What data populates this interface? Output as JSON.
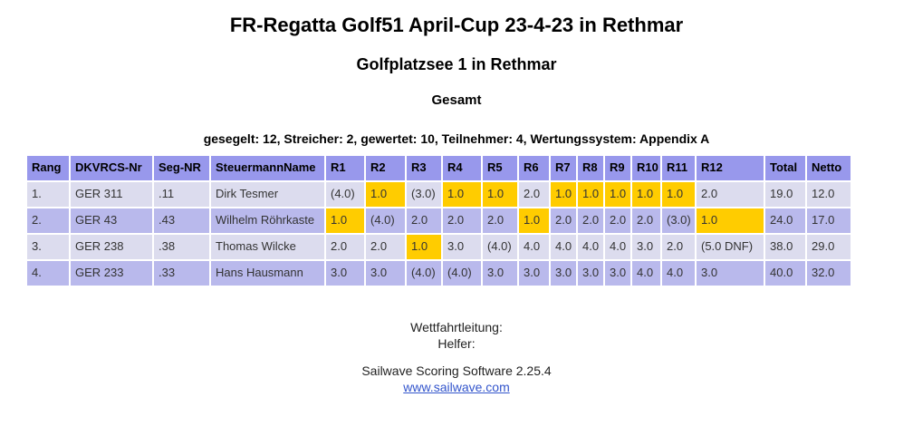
{
  "header": {
    "title": "FR-Regatta Golf51 April-Cup 23-4-23 in Rethmar",
    "subtitle": "Golfplatzsee 1 in Rethmar",
    "section": "Gesamt",
    "summary": "gesegelt: 12, Streicher: 2, gewertet: 10, Teilnehmer: 4, Wertungssystem: Appendix A"
  },
  "table": {
    "columns": [
      "Rang",
      "DKVRCS-Nr",
      "Seg-NR",
      "SteuermannName",
      "R1",
      "R2",
      "R3",
      "R4",
      "R5",
      "R6",
      "R7",
      "R8",
      "R9",
      "R10",
      "R11",
      "R12",
      "Total",
      "Netto"
    ],
    "rows": [
      {
        "rank": "1.",
        "dkvrcs_nr": "GER 311",
        "seg_nr": ".11",
        "steuermann": "Dirk Tesmer",
        "races": [
          {
            "v": "(4.0)"
          },
          {
            "v": "1.0",
            "hl": true
          },
          {
            "v": "(3.0)"
          },
          {
            "v": "1.0",
            "hl": true
          },
          {
            "v": "1.0",
            "hl": true
          },
          {
            "v": "2.0"
          },
          {
            "v": "1.0",
            "hl": true
          },
          {
            "v": "1.0",
            "hl": true
          },
          {
            "v": "1.0",
            "hl": true
          },
          {
            "v": "1.0",
            "hl": true
          },
          {
            "v": "1.0",
            "hl": true
          },
          {
            "v": "2.0"
          }
        ],
        "total": "19.0",
        "netto": "12.0"
      },
      {
        "rank": "2.",
        "dkvrcs_nr": "GER 43",
        "seg_nr": ".43",
        "steuermann": "Wilhelm Röhrkaste",
        "races": [
          {
            "v": "1.0",
            "hl": true
          },
          {
            "v": "(4.0)"
          },
          {
            "v": "2.0"
          },
          {
            "v": "2.0"
          },
          {
            "v": "2.0"
          },
          {
            "v": "1.0",
            "hl": true
          },
          {
            "v": "2.0"
          },
          {
            "v": "2.0"
          },
          {
            "v": "2.0"
          },
          {
            "v": "2.0"
          },
          {
            "v": "(3.0)"
          },
          {
            "v": "1.0",
            "hl": true
          }
        ],
        "total": "24.0",
        "netto": "17.0"
      },
      {
        "rank": "3.",
        "dkvrcs_nr": "GER 238",
        "seg_nr": ".38",
        "steuermann": "Thomas Wilcke",
        "races": [
          {
            "v": "2.0"
          },
          {
            "v": "2.0"
          },
          {
            "v": "1.0",
            "hl": true
          },
          {
            "v": "3.0"
          },
          {
            "v": "(4.0)"
          },
          {
            "v": "4.0"
          },
          {
            "v": "4.0"
          },
          {
            "v": "4.0"
          },
          {
            "v": "4.0"
          },
          {
            "v": "3.0"
          },
          {
            "v": "2.0"
          },
          {
            "v": "(5.0 DNF)"
          }
        ],
        "total": "38.0",
        "netto": "29.0"
      },
      {
        "rank": "4.",
        "dkvrcs_nr": "GER 233",
        "seg_nr": ".33",
        "steuermann": "Hans Hausmann",
        "races": [
          {
            "v": "3.0"
          },
          {
            "v": "3.0"
          },
          {
            "v": "(4.0)"
          },
          {
            "v": "(4.0)"
          },
          {
            "v": "3.0"
          },
          {
            "v": "3.0"
          },
          {
            "v": "3.0"
          },
          {
            "v": "3.0"
          },
          {
            "v": "3.0"
          },
          {
            "v": "4.0"
          },
          {
            "v": "4.0"
          },
          {
            "v": "3.0"
          }
        ],
        "total": "40.0",
        "netto": "32.0"
      }
    ]
  },
  "footer": {
    "officials_line1": "Wettfahrtleitung:",
    "officials_line2": "Helfer:",
    "software": "Sailwave Scoring Software 2.25.4",
    "link_label": "www.sailwave.com"
  },
  "colors": {
    "header_bg": "#9898ec",
    "row_light": "#dcdcee",
    "row_dark": "#b9b9ec",
    "highlight": "#ffcc00",
    "link": "#3355cc"
  }
}
